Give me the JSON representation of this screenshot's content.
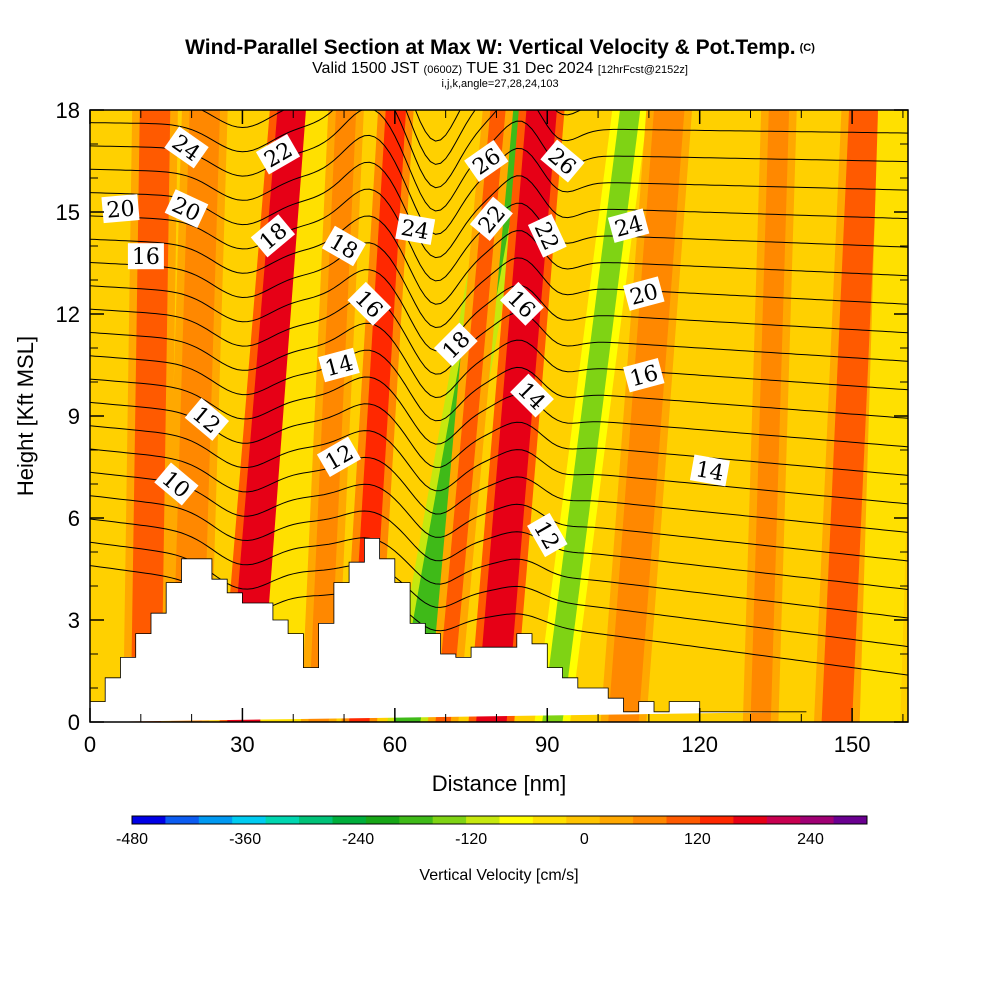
{
  "title": {
    "main": "Wind-Parallel Section at Max W: Vertical Velocity & Pot.Temp.",
    "main_units": "(C)",
    "valid_prefix": "Valid 1500 JST",
    "valid_utc": "(0600Z)",
    "valid_date": "TUE 31 Dec 2024",
    "forecast": "[12hrFcst@2152z]",
    "meta": "i,j,k,angle=27,28,24,103"
  },
  "chart_data": {
    "type": "heatmap",
    "xlabel": "Distance [nm]",
    "ylabel": "Height [Kft MSL]",
    "xlim": [
      0,
      161
    ],
    "ylim": [
      0,
      18
    ],
    "xticks": [
      0,
      30,
      60,
      90,
      120,
      150
    ],
    "yticks": [
      0,
      3,
      6,
      9,
      12,
      15,
      18
    ],
    "xtick_labels": [
      "0",
      "30",
      "60",
      "90",
      "120",
      "150"
    ],
    "ytick_labels": [
      "0",
      "3",
      "6",
      "9",
      "12",
      "15",
      "18"
    ],
    "colorbar": {
      "label": "Vertical Velocity [cm/s]",
      "tick_labels": [
        "-480",
        "-360",
        "-240",
        "-120",
        "0",
        "120",
        "240"
      ],
      "tick_values": [
        -480,
        -360,
        -240,
        -120,
        0,
        120,
        240
      ],
      "bounds": [
        -480,
        300
      ],
      "colors": [
        "#0000e6",
        "#0c5cf2",
        "#0099f2",
        "#00ccf2",
        "#00d6b0",
        "#00c278",
        "#00ae3c",
        "#17a617",
        "#3fba18",
        "#7fd314",
        "#c6e80e",
        "#ffff00",
        "#ffe000",
        "#ffc400",
        "#ffa800",
        "#ff8800",
        "#ff5a00",
        "#ff2800",
        "#e60016",
        "#c80050",
        "#a00074",
        "#6a0090"
      ]
    },
    "background_color": "#ffd000",
    "vertical_velocity_bands": [
      {
        "x_low": 8,
        "x_high": 14,
        "tilt": 0.1,
        "w": 90
      },
      {
        "x_low": 16,
        "x_high": 22,
        "tilt": 0.2,
        "w": 60
      },
      {
        "x_low": 27,
        "x_high": 34,
        "tilt": 0.55,
        "w": 180
      },
      {
        "x_low": 35,
        "x_high": 41,
        "tilt": 0.5,
        "w": -40
      },
      {
        "x_low": 43,
        "x_high": 47,
        "tilt": 0.3,
        "w": 80
      },
      {
        "x_low": 51,
        "x_high": 55,
        "tilt": 0.4,
        "w": 150
      },
      {
        "x_low": 60,
        "x_high": 65,
        "tilt": 1.2,
        "w": -180
      },
      {
        "x_low": 68,
        "x_high": 71,
        "tilt": 0.6,
        "w": 90
      },
      {
        "x_low": 76,
        "x_high": 82,
        "tilt": 0.55,
        "w": 190
      },
      {
        "x_low": 89,
        "x_high": 93,
        "tilt": 0.85,
        "w": -150
      },
      {
        "x_low": 102,
        "x_high": 108,
        "tilt": 0.5,
        "w": 80
      },
      {
        "x_low": 130,
        "x_high": 134,
        "tilt": 0.2,
        "w": 70
      },
      {
        "x_low": 144,
        "x_high": 150,
        "tilt": 0.3,
        "w": 90
      },
      {
        "x_low": 153,
        "x_high": 158,
        "tilt": 0.2,
        "w": -40
      }
    ],
    "terrain": {
      "x": [
        0,
        3,
        3,
        6,
        6,
        9,
        9,
        12,
        12,
        15,
        15,
        18,
        18,
        24,
        24,
        27,
        27,
        30,
        30,
        36,
        36,
        39,
        39,
        42,
        42,
        45,
        45,
        48,
        48,
        51,
        51,
        54,
        54,
        57,
        57,
        60,
        60,
        63,
        63,
        66,
        66,
        69,
        69,
        72,
        72,
        75,
        75,
        84,
        84,
        87,
        87,
        90,
        90,
        93,
        93,
        96,
        96,
        102,
        102,
        105,
        105,
        108,
        108,
        111,
        111,
        114,
        114,
        120,
        120,
        135,
        135,
        141,
        141,
        161
      ],
      "y": [
        0.6,
        0.6,
        1.3,
        1.3,
        1.9,
        1.9,
        2.6,
        2.6,
        3.2,
        3.2,
        4.1,
        4.1,
        4.8,
        4.8,
        4.2,
        4.2,
        3.8,
        3.8,
        3.5,
        3.5,
        3.0,
        3.0,
        2.6,
        2.6,
        1.6,
        1.6,
        2.9,
        2.9,
        4.1,
        4.1,
        4.7,
        4.7,
        5.4,
        5.4,
        4.8,
        4.8,
        4.1,
        4.1,
        2.9,
        2.9,
        2.6,
        2.6,
        2.0,
        2.0,
        1.9,
        1.9,
        2.2,
        2.2,
        2.6,
        2.6,
        2.3,
        2.3,
        1.6,
        1.6,
        1.3,
        1.3,
        1.0,
        1.0,
        0.7,
        0.7,
        0.3,
        0.3,
        0.6,
        0.6,
        0.3,
        0.3,
        0.6,
        0.6,
        0.3,
        0.3,
        0.3,
        0.3
      ],
      "fill": "#ffffff"
    },
    "potential_temperature_contours": {
      "levels": [
        8,
        9,
        10,
        11,
        12,
        13,
        14,
        15,
        16,
        17,
        18,
        19,
        20,
        21,
        22,
        23,
        24,
        25,
        26,
        27,
        28,
        29
      ],
      "line_color": "#000000",
      "labels": [
        {
          "text": "24",
          "x": 19,
          "y": 16.9,
          "angle": 35
        },
        {
          "text": "22",
          "x": 37,
          "y": 16.7,
          "angle": -30
        },
        {
          "text": "26",
          "x": 78,
          "y": 16.5,
          "angle": -35
        },
        {
          "text": "26",
          "x": 93,
          "y": 16.5,
          "angle": 40
        },
        {
          "text": "20",
          "x": 6,
          "y": 15.1,
          "angle": -5
        },
        {
          "text": "20",
          "x": 19,
          "y": 15.1,
          "angle": 25
        },
        {
          "text": "18",
          "x": 36,
          "y": 14.3,
          "angle": -40
        },
        {
          "text": "18",
          "x": 50,
          "y": 14.0,
          "angle": 30
        },
        {
          "text": "24",
          "x": 64,
          "y": 14.5,
          "angle": 10
        },
        {
          "text": "22",
          "x": 79,
          "y": 14.8,
          "angle": -50
        },
        {
          "text": "22",
          "x": 90,
          "y": 14.3,
          "angle": 65
        },
        {
          "text": "24",
          "x": 106,
          "y": 14.6,
          "angle": -15
        },
        {
          "text": "16",
          "x": 11,
          "y": 13.7,
          "angle": 0
        },
        {
          "text": "20",
          "x": 109,
          "y": 12.6,
          "angle": -15
        },
        {
          "text": "16",
          "x": 55,
          "y": 12.3,
          "angle": 45
        },
        {
          "text": "16",
          "x": 85,
          "y": 12.3,
          "angle": 45
        },
        {
          "text": "18",
          "x": 72,
          "y": 11.1,
          "angle": -45
        },
        {
          "text": "14",
          "x": 49,
          "y": 10.5,
          "angle": -15
        },
        {
          "text": "16",
          "x": 109,
          "y": 10.2,
          "angle": -15
        },
        {
          "text": "14",
          "x": 87,
          "y": 9.6,
          "angle": 45
        },
        {
          "text": "12",
          "x": 23,
          "y": 8.9,
          "angle": 40
        },
        {
          "text": "12",
          "x": 49,
          "y": 7.8,
          "angle": -30
        },
        {
          "text": "14",
          "x": 122,
          "y": 7.4,
          "angle": 10
        },
        {
          "text": "10",
          "x": 17,
          "y": 7.0,
          "angle": 40
        },
        {
          "text": "12",
          "x": 90,
          "y": 5.5,
          "angle": 60
        }
      ]
    }
  }
}
